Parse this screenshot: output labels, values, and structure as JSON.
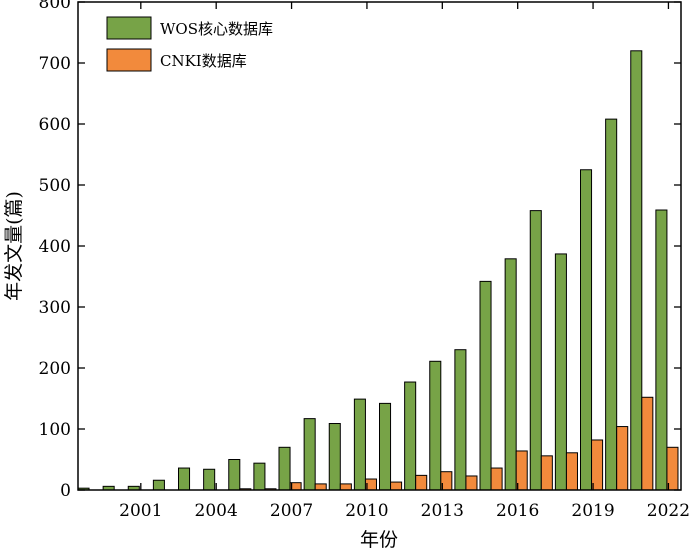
{
  "chart_data": {
    "type": "bar",
    "title": "",
    "xlabel": "年份",
    "ylabel": "年发文量(篇)",
    "ylim": [
      0,
      800
    ],
    "yticks": [
      "0",
      "100",
      "200",
      "300",
      "400",
      "500",
      "600",
      "700",
      "800"
    ],
    "xticks": [
      "2001",
      "2004",
      "2007",
      "2010",
      "2013",
      "2016",
      "2019",
      "2022"
    ],
    "categories": [
      "1999",
      "2000",
      "2001",
      "2002",
      "2003",
      "2004",
      "2005",
      "2006",
      "2007",
      "2008",
      "2009",
      "2010",
      "2011",
      "2012",
      "2013",
      "2014",
      "2015",
      "2016",
      "2017",
      "2018",
      "2019",
      "2020",
      "2021",
      "2022"
    ],
    "legend_position": "top-left",
    "grid": false,
    "series": [
      {
        "name": "WOS核心数据库",
        "color": "#77A347",
        "values": [
          3,
          6,
          6,
          16,
          36,
          34,
          50,
          44,
          70,
          117,
          109,
          149,
          142,
          177,
          211,
          230,
          342,
          379,
          458,
          387,
          525,
          608,
          720,
          459
        ]
      },
      {
        "name": "CNKI数据库",
        "color": "#F28A3C",
        "values": [
          0,
          0,
          0,
          0,
          0,
          0,
          2,
          2,
          12,
          10,
          10,
          18,
          13,
          24,
          30,
          23,
          36,
          64,
          56,
          61,
          82,
          104,
          152,
          70
        ]
      }
    ]
  }
}
